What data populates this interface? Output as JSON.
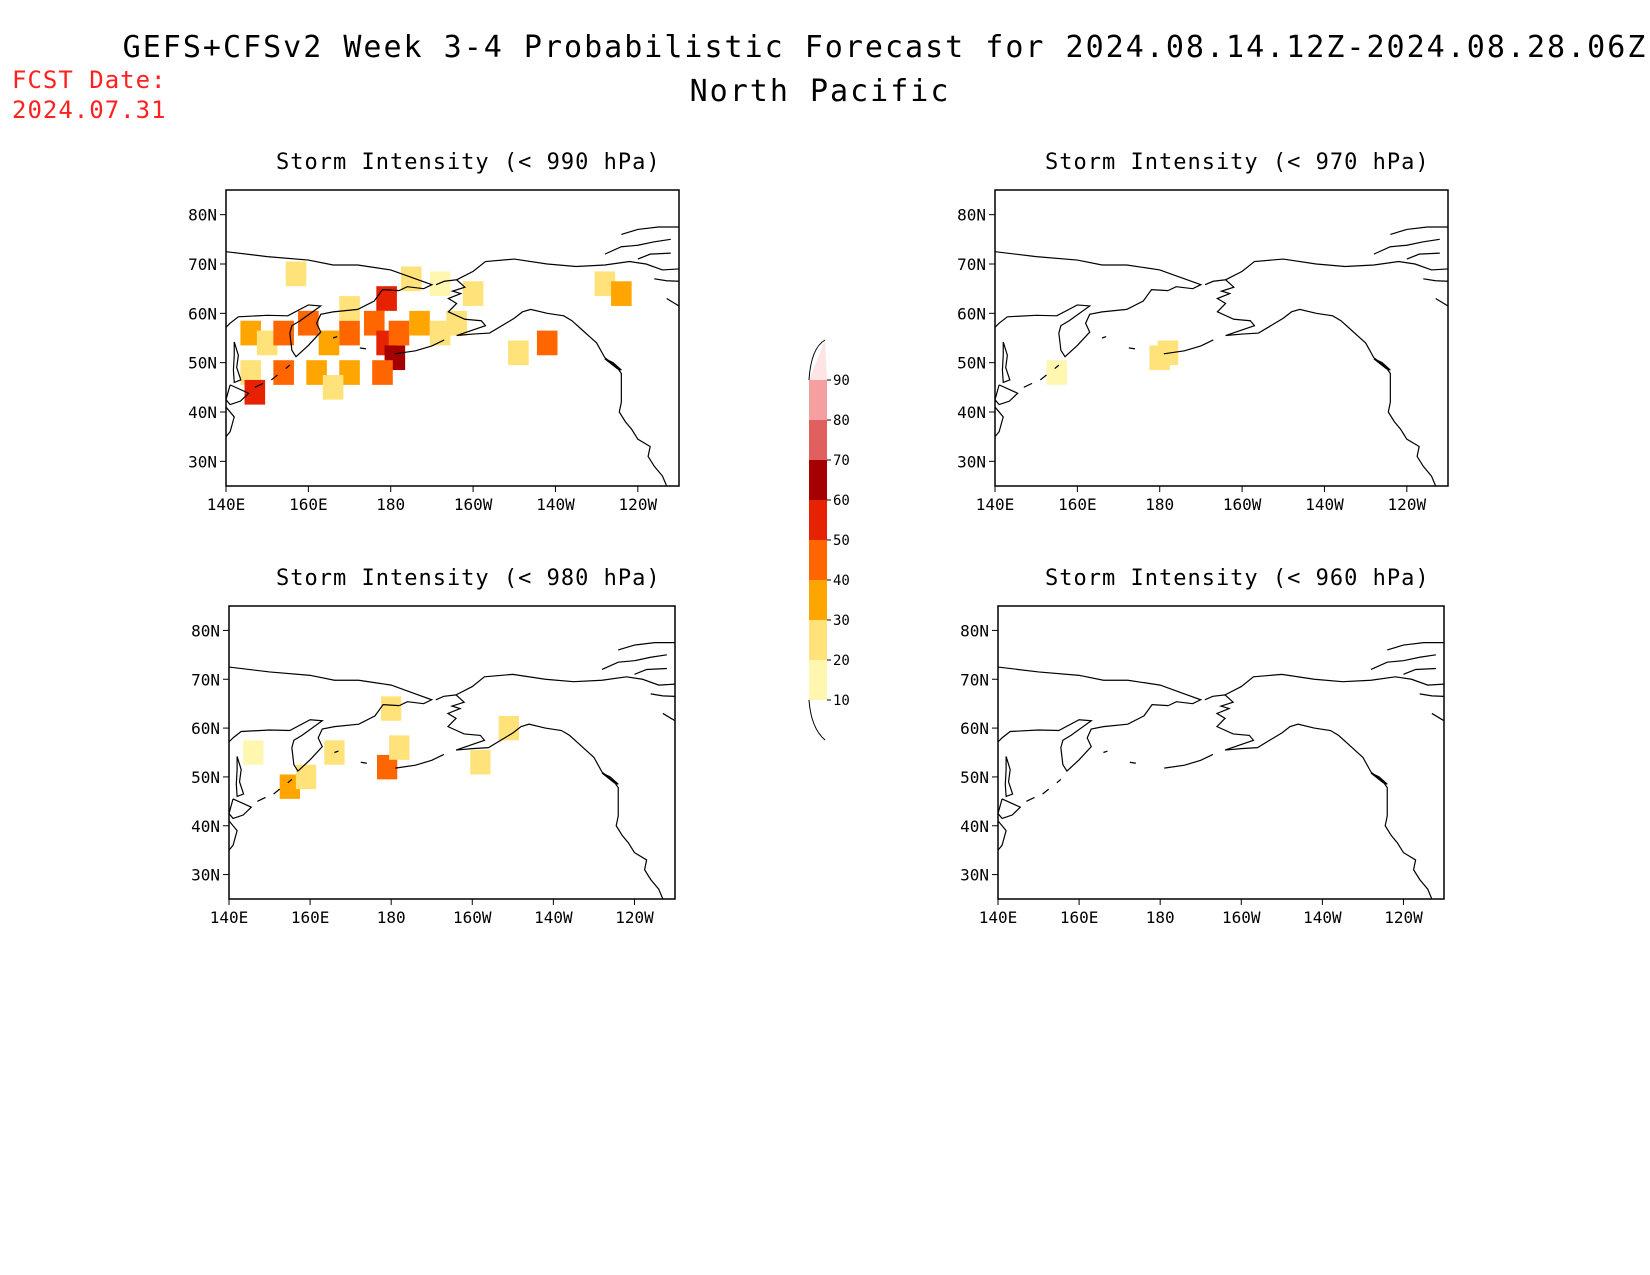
{
  "header": {
    "title": "GEFS+CFSv2 Week 3-4 Probabilistic Forecast for 2024.08.14.12Z-2024.08.28.06Z",
    "region": "North Pacific",
    "fcst_label": "FCST Date:",
    "fcst_date": "2024.07.31"
  },
  "axes": {
    "lat_labels": [
      "80N",
      "70N",
      "60N",
      "50N",
      "40N",
      "30N"
    ],
    "lat_values": [
      80,
      70,
      60,
      50,
      40,
      30
    ],
    "lon_labels": [
      "140E",
      "160E",
      "180",
      "160W",
      "140W",
      "120W"
    ],
    "lon_values": [
      140,
      160,
      180,
      200,
      220,
      240
    ],
    "lon_range": [
      140,
      250
    ],
    "lat_range": [
      25,
      85
    ]
  },
  "colorbar": {
    "levels": [
      "10",
      "20",
      "30",
      "40",
      "50",
      "60",
      "70",
      "80",
      "90"
    ],
    "colors": [
      "#fff6b0",
      "#ffe27a",
      "#ffa500",
      "#ff6600",
      "#e62200",
      "#a50000",
      "#e06060",
      "#f4a0a0",
      "#ffe4e4"
    ]
  },
  "panels": [
    {
      "id": "p990",
      "title": "Storm Intensity (< 990 hPa)",
      "cells": [
        {
          "lon": 157,
          "lat": 68,
          "p": 20
        },
        {
          "lon": 185,
          "lat": 67,
          "p": 20
        },
        {
          "lon": 192,
          "lat": 66,
          "p": 10
        },
        {
          "lon": 200,
          "lat": 64,
          "p": 20
        },
        {
          "lon": 232,
          "lat": 66,
          "p": 20
        },
        {
          "lon": 236,
          "lat": 64,
          "p": 30
        },
        {
          "lon": 146,
          "lat": 56,
          "p": 30
        },
        {
          "lon": 150,
          "lat": 54,
          "p": 20
        },
        {
          "lon": 154,
          "lat": 56,
          "p": 40
        },
        {
          "lon": 160,
          "lat": 58,
          "p": 40
        },
        {
          "lon": 165,
          "lat": 54,
          "p": 30
        },
        {
          "lon": 170,
          "lat": 56,
          "p": 40
        },
        {
          "lon": 176,
          "lat": 58,
          "p": 40
        },
        {
          "lon": 179,
          "lat": 54,
          "p": 50
        },
        {
          "lon": 181,
          "lat": 51,
          "p": 60
        },
        {
          "lon": 182,
          "lat": 56,
          "p": 40
        },
        {
          "lon": 187,
          "lat": 58,
          "p": 30
        },
        {
          "lon": 192,
          "lat": 56,
          "p": 20
        },
        {
          "lon": 196,
          "lat": 58,
          "p": 20
        },
        {
          "lon": 162,
          "lat": 48,
          "p": 30
        },
        {
          "lon": 154,
          "lat": 48,
          "p": 40
        },
        {
          "lon": 146,
          "lat": 48,
          "p": 20
        },
        {
          "lon": 170,
          "lat": 48,
          "p": 30
        },
        {
          "lon": 178,
          "lat": 48,
          "p": 40
        },
        {
          "lon": 166,
          "lat": 45,
          "p": 20
        },
        {
          "lon": 147,
          "lat": 44,
          "p": 50
        },
        {
          "lon": 211,
          "lat": 52,
          "p": 20
        },
        {
          "lon": 218,
          "lat": 54,
          "p": 40
        },
        {
          "lon": 179,
          "lat": 63,
          "p": 50
        },
        {
          "lon": 170,
          "lat": 61,
          "p": 20
        }
      ]
    },
    {
      "id": "p970",
      "title": "Storm Intensity (< 970 hPa)",
      "cells": [
        {
          "lon": 180,
          "lat": 51,
          "p": 20
        },
        {
          "lon": 182,
          "lat": 52,
          "p": 20
        },
        {
          "lon": 155,
          "lat": 48,
          "p": 10
        }
      ]
    },
    {
      "id": "p980",
      "title": "Storm Intensity (< 980 hPa)",
      "cells": [
        {
          "lon": 146,
          "lat": 55,
          "p": 10
        },
        {
          "lon": 155,
          "lat": 48,
          "p": 30
        },
        {
          "lon": 159,
          "lat": 50,
          "p": 20
        },
        {
          "lon": 166,
          "lat": 55,
          "p": 20
        },
        {
          "lon": 179,
          "lat": 52,
          "p": 40
        },
        {
          "lon": 182,
          "lat": 56,
          "p": 20
        },
        {
          "lon": 180,
          "lat": 64,
          "p": 20
        },
        {
          "lon": 202,
          "lat": 53,
          "p": 20
        },
        {
          "lon": 209,
          "lat": 60,
          "p": 20
        }
      ]
    },
    {
      "id": "p960",
      "title": "Storm Intensity (< 960 hPa)",
      "cells": []
    }
  ]
}
